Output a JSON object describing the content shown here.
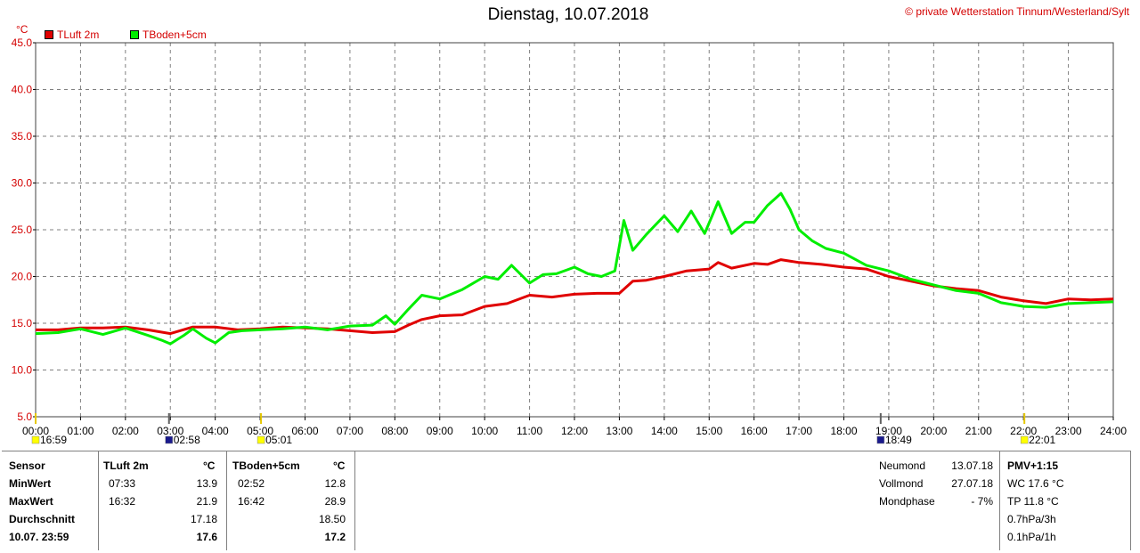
{
  "header": {
    "title": "Dienstag, 10.07.2018",
    "copyright": "© private Wetterstation Tinnum/Westerland/Sylt",
    "unit": "°C"
  },
  "colors": {
    "tluft": "#e00000",
    "tboden": "#00ee00",
    "grid": "#808080",
    "marker_yellow": "#ffff00",
    "marker_blue": "#1a1a8c"
  },
  "chart_data": {
    "type": "line",
    "title": "Dienstag, 10.07.2018",
    "ylabel": "°C",
    "xlim": [
      0,
      24
    ],
    "ylim": [
      5,
      45
    ],
    "yticks": [
      "5.0",
      "10.0",
      "15.0",
      "20.0",
      "25.0",
      "30.0",
      "35.0",
      "40.0",
      "45.0"
    ],
    "xticks": [
      "00:00",
      "01:00",
      "02:00",
      "03:00",
      "04:00",
      "05:00",
      "06:00",
      "07:00",
      "08:00",
      "09:00",
      "10:00",
      "11:00",
      "12:00",
      "13:00",
      "14:00",
      "15:00",
      "16:00",
      "17:00",
      "18:00",
      "19:00",
      "20:00",
      "21:00",
      "22:00",
      "23:00",
      "24:00"
    ],
    "grid": true,
    "legend_position": "top-left",
    "series": [
      {
        "name": "TLuft 2m",
        "color": "#e00000",
        "x": [
          0,
          0.5,
          1,
          1.5,
          2,
          2.5,
          3,
          3.5,
          4,
          4.5,
          5,
          5.5,
          6,
          6.5,
          7,
          7.5,
          8,
          8.3,
          8.6,
          9,
          9.5,
          10,
          10.5,
          11,
          11.5,
          12,
          12.5,
          13,
          13.3,
          13.6,
          14,
          14.5,
          15,
          15.2,
          15.5,
          16,
          16.3,
          16.6,
          17,
          17.5,
          18,
          18.5,
          19,
          19.5,
          20,
          20.5,
          21,
          21.5,
          22,
          22.5,
          23,
          23.5,
          24
        ],
        "values": [
          14.3,
          14.3,
          14.5,
          14.5,
          14.6,
          14.3,
          13.9,
          14.6,
          14.6,
          14.3,
          14.4,
          14.6,
          14.5,
          14.4,
          14.2,
          14.0,
          14.1,
          14.8,
          15.4,
          15.8,
          15.9,
          16.8,
          17.1,
          18.0,
          17.8,
          18.1,
          18.2,
          18.2,
          19.5,
          19.6,
          20.0,
          20.6,
          20.8,
          21.5,
          20.9,
          21.4,
          21.3,
          21.8,
          21.5,
          21.3,
          21.0,
          20.8,
          20.0,
          19.5,
          19.0,
          18.7,
          18.5,
          17.8,
          17.4,
          17.1,
          17.6,
          17.5,
          17.6
        ]
      },
      {
        "name": "TBoden+5cm",
        "color": "#00ee00",
        "x": [
          0,
          0.5,
          1,
          1.5,
          2,
          2.5,
          2.8,
          3,
          3.3,
          3.5,
          3.8,
          4,
          4.3,
          4.6,
          5,
          5.5,
          6,
          6.5,
          7,
          7.5,
          7.8,
          8,
          8.3,
          8.6,
          9,
          9.5,
          10,
          10.3,
          10.6,
          11,
          11.3,
          11.6,
          12,
          12.3,
          12.6,
          12.9,
          13.1,
          13.3,
          13.6,
          14,
          14.3,
          14.6,
          14.9,
          15.2,
          15.5,
          15.8,
          16,
          16.3,
          16.6,
          16.8,
          17,
          17.3,
          17.6,
          18,
          18.5,
          19,
          19.5,
          20,
          20.5,
          21,
          21.5,
          22,
          22.5,
          23,
          23.5,
          24
        ],
        "values": [
          13.9,
          14.0,
          14.4,
          13.8,
          14.5,
          13.7,
          13.2,
          12.8,
          13.7,
          14.4,
          13.4,
          12.9,
          14.0,
          14.2,
          14.3,
          14.4,
          14.6,
          14.3,
          14.7,
          14.8,
          15.8,
          14.9,
          16.5,
          18.0,
          17.6,
          18.6,
          20.0,
          19.7,
          21.2,
          19.3,
          20.2,
          20.3,
          21.0,
          20.3,
          20.0,
          20.6,
          26.0,
          22.8,
          24.5,
          26.5,
          24.8,
          27.0,
          24.6,
          28.0,
          24.6,
          25.8,
          25.8,
          27.6,
          28.9,
          27.2,
          25.0,
          23.8,
          23.0,
          22.5,
          21.2,
          20.6,
          19.7,
          19.1,
          18.5,
          18.2,
          17.2,
          16.8,
          16.7,
          17.1,
          17.2,
          17.3
        ]
      }
    ],
    "markers": [
      {
        "time": "16:59",
        "hour": 0.0,
        "color": "#ffff00"
      },
      {
        "time": "02:58",
        "hour": 2.97,
        "color": "#1a1a8c"
      },
      {
        "time": "05:01",
        "hour": 5.02,
        "color": "#ffff00"
      },
      {
        "time": "18:49",
        "hour": 18.82,
        "color": "#1a1a8c"
      },
      {
        "time": "22:01",
        "hour": 22.02,
        "color": "#ffff00"
      }
    ]
  },
  "stats": {
    "sensor_label": "Sensor",
    "rows": [
      "MinWert",
      "MaxWert",
      "Durchschnitt",
      "10.07. 23:59"
    ],
    "tluft": {
      "header": "TLuft 2m",
      "unit": "°C",
      "min_time": "07:33",
      "min_val": "13.9",
      "max_time": "16:32",
      "max_val": "21.9",
      "avg": "17.18",
      "last": "17.6"
    },
    "tboden": {
      "header": "TBoden+5cm",
      "unit": "°C",
      "min_time": "02:52",
      "min_val": "12.8",
      "max_time": "16:42",
      "max_val": "28.9",
      "avg": "18.50",
      "last": "17.2"
    }
  },
  "moon": {
    "labels": [
      "Neumond",
      "Vollmond",
      "Mondphase"
    ],
    "values": [
      "13.07.18",
      "27.07.18",
      "- 7%"
    ]
  },
  "pmv": {
    "title": "PMV+1:15",
    "lines": [
      "WC 17.6 °C",
      "TP 11.8 °C",
      "0.7hPa/3h",
      "0.1hPa/1h"
    ]
  }
}
